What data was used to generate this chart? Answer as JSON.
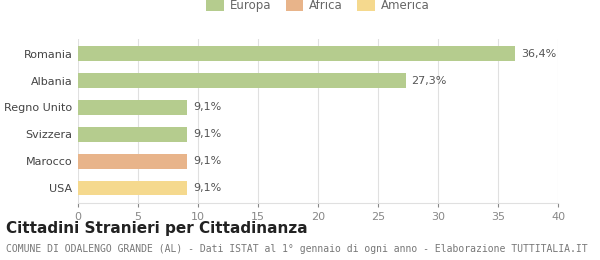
{
  "categories": [
    "USA",
    "Marocco",
    "Svizzera",
    "Regno Unito",
    "Albania",
    "Romania"
  ],
  "values": [
    9.1,
    9.1,
    9.1,
    9.1,
    27.3,
    36.4
  ],
  "labels": [
    "9,1%",
    "9,1%",
    "9,1%",
    "9,1%",
    "27,3%",
    "36,4%"
  ],
  "colors": [
    "#f5d98e",
    "#e8b48a",
    "#b5cc8e",
    "#b5cc8e",
    "#b5cc8e",
    "#b5cc8e"
  ],
  "legend_items": [
    {
      "label": "Europa",
      "color": "#b5cc8e"
    },
    {
      "label": "Africa",
      "color": "#e8b48a"
    },
    {
      "label": "America",
      "color": "#f5d98e"
    }
  ],
  "xlim": [
    0,
    40
  ],
  "xticks": [
    0,
    5,
    10,
    15,
    20,
    25,
    30,
    35,
    40
  ],
  "title": "Cittadini Stranieri per Cittadinanza",
  "subtitle": "COMUNE DI ODALENGO GRANDE (AL) - Dati ISTAT al 1° gennaio di ogni anno - Elaborazione TUTTITALIA.IT",
  "background_color": "#ffffff",
  "grid_color": "#e0e0e0",
  "bar_height": 0.55,
  "label_fontsize": 8,
  "tick_fontsize": 8,
  "ytick_fontsize": 8,
  "title_fontsize": 11,
  "subtitle_fontsize": 7,
  "legend_fontsize": 8.5
}
